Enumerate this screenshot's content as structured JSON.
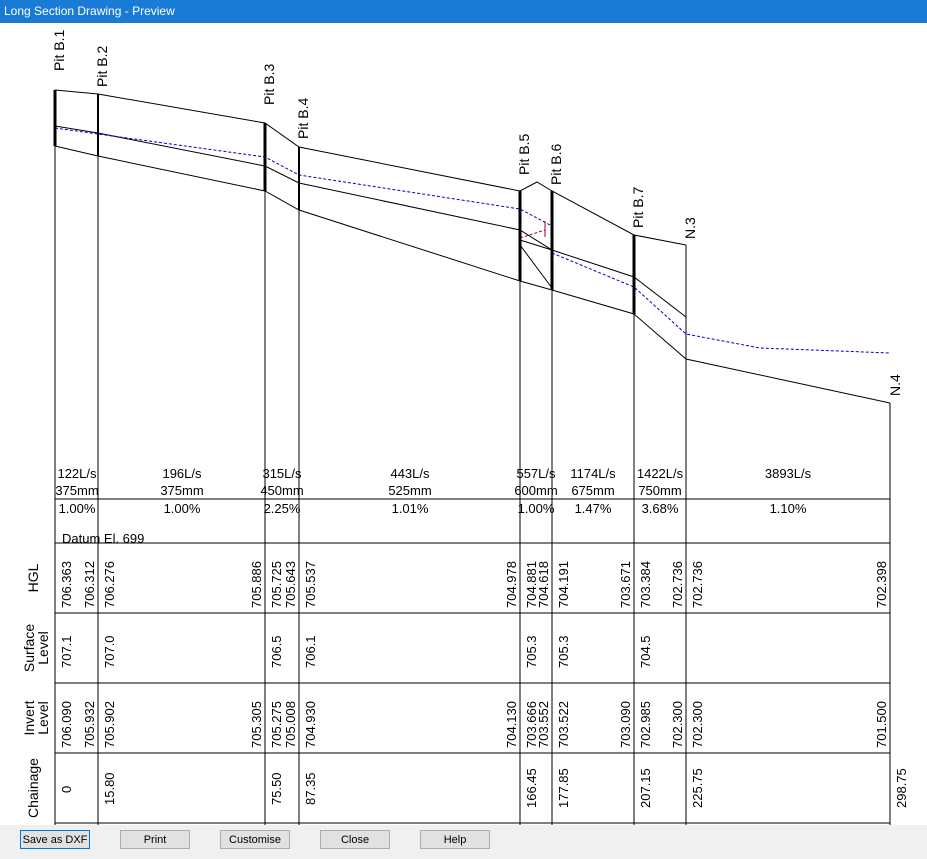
{
  "window": {
    "title": "Long Section Drawing - Preview"
  },
  "pits": [
    {
      "name": "Pit B.1",
      "chainage": "0",
      "surface": "707.1",
      "hgl": [
        "706.363"
      ],
      "invert": [
        "706.090"
      ]
    },
    {
      "name": "Pit B.2",
      "chainage": "15.80",
      "surface": "707.0",
      "hgl": [
        "706.312",
        "706.276"
      ],
      "invert": [
        "705.932",
        "705.902"
      ]
    },
    {
      "name": "Pit B.3",
      "chainage": "75.50",
      "surface": "706.5",
      "hgl": [
        "705.886",
        "705.725"
      ],
      "invert": [
        "705.305",
        "705.275"
      ]
    },
    {
      "name": "Pit B.4",
      "chainage": "87.35",
      "surface": "706.1",
      "hgl": [
        "705.643",
        "705.537"
      ],
      "invert": [
        "705.008",
        "704.930"
      ]
    },
    {
      "name": "Pit B.5",
      "chainage": "166.45",
      "surface": "705.3",
      "hgl": [
        "704.978",
        "704.881"
      ],
      "invert": [
        "704.130",
        "703.666"
      ]
    },
    {
      "name": "Pit B.6",
      "chainage": "177.85",
      "surface": "705.3",
      "hgl": [
        "704.618",
        "704.191"
      ],
      "invert": [
        "703.552",
        "703.522"
      ]
    },
    {
      "name": "Pit B.7",
      "chainage": "207.15",
      "surface": "704.5",
      "hgl": [
        "703.671",
        "703.384"
      ],
      "invert": [
        "703.090",
        "702.985"
      ]
    },
    {
      "name": "N.3",
      "chainage": "225.75",
      "surface": "",
      "hgl": [
        "702.736",
        "702.736"
      ],
      "invert": [
        "702.300",
        "702.300"
      ]
    },
    {
      "name": "N.4",
      "chainage": "298.75",
      "surface": "",
      "hgl": [
        "702.398"
      ],
      "invert": [
        "701.500"
      ]
    }
  ],
  "pipes": [
    {
      "flow": "122L/s",
      "dia": "375mm",
      "grade": "1.00%"
    },
    {
      "flow": "196L/s",
      "dia": "375mm",
      "grade": "1.00%"
    },
    {
      "flow": "315L/s",
      "dia": "450mm",
      "grade": "2.25%"
    },
    {
      "flow": "443L/s",
      "dia": "525mm",
      "grade": "1.01%"
    },
    {
      "flow": "557L/s",
      "dia": "600mm",
      "grade": "1.00%"
    },
    {
      "flow": "1174L/s",
      "dia": "675mm",
      "grade": "1.47%"
    },
    {
      "flow": "1422L/s",
      "dia": "750mm",
      "grade": "3.68%"
    },
    {
      "flow": "3893L/s",
      "dia": "",
      "grade": "1.10%"
    }
  ],
  "datum_label": "Datum El. 699",
  "row_labels": {
    "hgl": "HGL",
    "surface": [
      "Surface",
      "Level"
    ],
    "invert": [
      "Invert",
      "Level"
    ],
    "chainage": "Chainage"
  },
  "buttons": {
    "save_dxf": "Save as DXF",
    "print": "Print",
    "customise": "Customise",
    "close": "Close",
    "help": "Help"
  },
  "colors": {
    "titlebar": "#1a7bd4",
    "hgl_line": "#0000cc"
  }
}
